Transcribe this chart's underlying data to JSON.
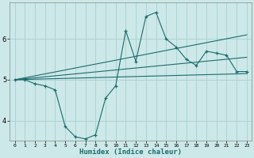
{
  "xlabel": "Humidex (Indice chaleur)",
  "bg_color": "#cce8e8",
  "line_color": "#1e6b6b",
  "grid_color": "#aacfcf",
  "xlim": [
    -0.5,
    23.5
  ],
  "ylim": [
    3.5,
    6.9
  ],
  "yticks": [
    4,
    5,
    6
  ],
  "xticks": [
    0,
    1,
    2,
    3,
    4,
    5,
    6,
    7,
    8,
    9,
    10,
    11,
    12,
    13,
    14,
    15,
    16,
    17,
    18,
    19,
    20,
    21,
    22,
    23
  ],
  "line1_x": [
    0,
    1,
    2,
    3,
    4,
    5,
    6,
    7,
    8,
    9,
    10,
    11,
    12,
    13,
    14,
    15,
    16,
    17,
    18,
    19,
    20,
    21,
    22,
    23
  ],
  "line1_y": [
    5.0,
    5.0,
    4.9,
    4.85,
    4.75,
    3.85,
    3.6,
    3.55,
    3.65,
    4.55,
    4.85,
    6.2,
    5.45,
    6.55,
    6.65,
    6.0,
    5.8,
    5.5,
    5.35,
    5.7,
    5.65,
    5.6,
    5.2,
    5.2
  ],
  "line2_x": [
    0,
    23
  ],
  "line2_y": [
    5.0,
    5.15
  ],
  "line3_x": [
    0,
    23
  ],
  "line3_y": [
    5.0,
    5.55
  ],
  "line4_x": [
    0,
    23
  ],
  "line4_y": [
    5.0,
    6.1
  ]
}
